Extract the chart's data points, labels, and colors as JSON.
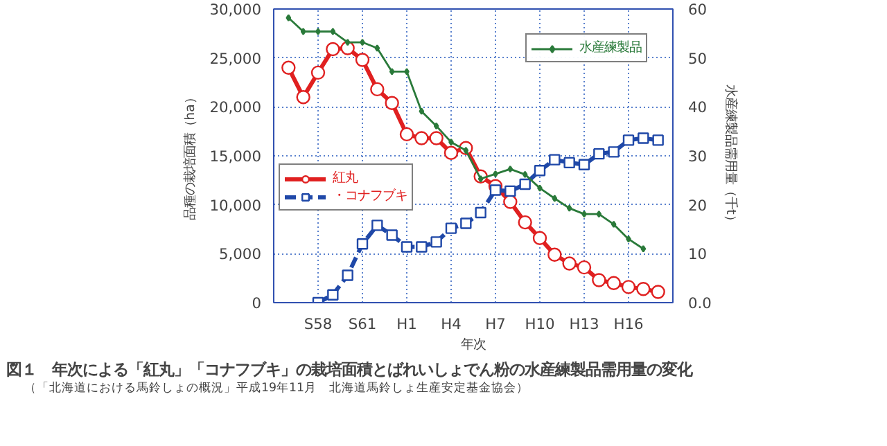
{
  "chart_data": {
    "type": "line",
    "title": "図１　年次による「紅丸」「コナフブキ」の栽培面積とばれいしょでん粉の水産練製品需用量の変化",
    "annotations": [
      "（「北海道における馬鈴しょの概況」平成19年11月　北海道馬鈴しょ生産安定基金協会）"
    ],
    "xlabel": "年次",
    "ylabel": "品種の栽培面積（ha）",
    "y2label": "水産練製品需用量（千t）",
    "categories": [
      null,
      null,
      "S58",
      null,
      null,
      "S61",
      null,
      null,
      "H1",
      null,
      null,
      "H4",
      null,
      null,
      "H7",
      null,
      null,
      "H10",
      null,
      null,
      "H13",
      null,
      null,
      "H16",
      null,
      null
    ],
    "ylim": [
      0,
      30000
    ],
    "yticks": [
      0,
      {
        "value": 5000,
        "label": "5,000"
      },
      {
        "value": 10000,
        "label": "10,000"
      },
      {
        "value": 15000,
        "label": "15,000"
      },
      {
        "value": 20000,
        "label": "20,000"
      },
      {
        "value": 25000,
        "label": "25,000"
      },
      {
        "value": 30000,
        "label": "30,000"
      }
    ],
    "y2lim": [
      0,
      60
    ],
    "y2ticks": [
      {
        "value": 0,
        "label": "0.0"
      },
      10,
      20,
      30,
      40,
      50,
      60
    ],
    "grid": true,
    "legend": "center left",
    "series": [
      {
        "name": "紅丸",
        "color": "#e02020",
        "marker": "circle",
        "line_style": "solid",
        "values": [
          24000,
          21000,
          23500,
          25900,
          26000,
          24800,
          21800,
          20400,
          17200,
          16800,
          16800,
          15300,
          15800,
          12900,
          11900,
          10300,
          8200,
          6600,
          4900,
          4000,
          3600,
          2300,
          2000,
          1600,
          1400,
          1100
        ]
      },
      {
        "name": "・コナフブキ",
        "color": "#1f48a8",
        "marker": "square",
        "line_style": "dashed",
        "values": [
          null,
          null,
          0,
          800,
          2800,
          6000,
          7900,
          6900,
          5700,
          5700,
          6200,
          7600,
          8100,
          9200,
          11500,
          11400,
          12100,
          13500,
          14600,
          14300,
          14100,
          15200,
          15400,
          16600,
          16800,
          16600
        ]
      },
      {
        "name": "水産練製品",
        "color": "#2a7a3a",
        "marker": "diamond",
        "line_style": "solid",
        "axis": "y2",
        "values": [
          58.2,
          55.4,
          55.4,
          55.4,
          53.2,
          53.2,
          52.0,
          47.2,
          47.2,
          39.1,
          36.1,
          32.8,
          31.1,
          25.3,
          26.3,
          27.3,
          26.2,
          23.4,
          21.3,
          19.3,
          18.1,
          18.1,
          16.0,
          13.0,
          11.0,
          null
        ]
      }
    ]
  }
}
